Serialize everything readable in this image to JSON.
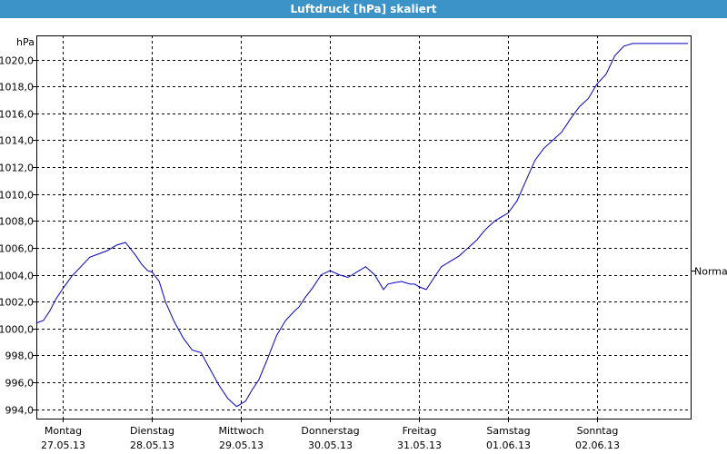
{
  "window": {
    "title": "Luftdruck [hPa] skaliert"
  },
  "chart_data": {
    "type": "line",
    "title": "Luftdruck [hPa] skaliert",
    "ylabel": "hPa",
    "xlabel": "",
    "ylim": [
      993.3,
      1021.8
    ],
    "yticks": [
      "994,0",
      "996,0",
      "998,0",
      "1000,0",
      "1002,0",
      "1004,0",
      "1006,0",
      "1008,0",
      "1010,0",
      "1012,0",
      "1014,0",
      "1016,0",
      "1018,0",
      "1020,0"
    ],
    "ytick_values": [
      994,
      996,
      998,
      1000,
      1002,
      1004,
      1006,
      1008,
      1010,
      1012,
      1014,
      1016,
      1018,
      1020
    ],
    "xlim": [
      -0.3,
      7.05
    ],
    "xticks": [
      {
        "day": "Montag",
        "date": "27.05.13"
      },
      {
        "day": "Dienstag",
        "date": "28.05.13"
      },
      {
        "day": "Mittwoch",
        "date": "29.05.13"
      },
      {
        "day": "Donnerstag",
        "date": "30.05.13"
      },
      {
        "day": "Freitag",
        "date": "31.05.13"
      },
      {
        "day": "Samstag",
        "date": "01.06.13"
      },
      {
        "day": "Sonntag",
        "date": "02.06.13"
      }
    ],
    "reference_line": {
      "label": "Normal",
      "value": 1004.3
    },
    "grid": true,
    "series": [
      {
        "color": "#0000c8",
        "x": [
          -0.3,
          -0.22,
          -0.15,
          -0.08,
          0.0,
          0.1,
          0.2,
          0.3,
          0.38,
          0.5,
          0.6,
          0.7,
          0.82,
          0.88,
          0.95,
          1.0,
          1.08,
          1.15,
          1.25,
          1.35,
          1.45,
          1.55,
          1.65,
          1.75,
          1.85,
          1.95,
          2.05,
          2.12,
          2.2,
          2.3,
          2.4,
          2.5,
          2.6,
          2.65,
          2.72,
          2.8,
          2.9,
          3.0,
          3.1,
          3.2,
          3.3,
          3.4,
          3.5,
          3.6,
          3.65,
          3.72,
          3.8,
          3.9,
          3.95,
          4.0,
          4.08,
          4.15,
          4.2,
          4.25,
          4.35,
          4.45,
          4.55,
          4.65,
          4.7,
          4.75,
          4.85,
          4.95,
          5.0,
          5.1,
          5.2,
          5.3,
          5.4,
          5.5,
          5.6,
          5.7,
          5.8,
          5.9,
          6.0,
          6.1,
          6.2,
          6.3,
          6.4,
          6.5,
          6.6,
          6.7,
          6.8,
          6.9,
          6.98,
          7.02
        ],
        "y": [
          1000.4,
          1000.6,
          1001.3,
          1002.2,
          1003.0,
          1003.9,
          1004.6,
          1005.3,
          1005.5,
          1005.8,
          1006.2,
          1006.4,
          1005.4,
          1004.8,
          1004.3,
          1004.2,
          1003.5,
          1002.0,
          1000.5,
          999.3,
          998.4,
          998.2,
          997.0,
          995.8,
          994.8,
          994.2,
          994.6,
          995.4,
          996.2,
          997.8,
          999.5,
          1000.6,
          1001.3,
          1001.6,
          1002.3,
          1003.0,
          1004.0,
          1004.3,
          1004.0,
          1003.8,
          1004.2,
          1004.6,
          1004.0,
          1002.9,
          1003.3,
          1003.4,
          1003.5,
          1003.3,
          1003.3,
          1003.1,
          1002.9,
          1003.6,
          1004.1,
          1004.6,
          1005.0,
          1005.4,
          1006.0,
          1006.6,
          1007.0,
          1007.4,
          1008.0,
          1008.4,
          1008.6,
          1009.5,
          1011.0,
          1012.5,
          1013.4,
          1014.0,
          1014.6,
          1015.6,
          1016.5,
          1017.1,
          1018.2,
          1018.9,
          1020.3,
          1021.0,
          1021.2,
          1021.2,
          1021.2,
          1021.2,
          1021.2,
          1021.2,
          1021.2,
          1021.2
        ]
      }
    ]
  }
}
